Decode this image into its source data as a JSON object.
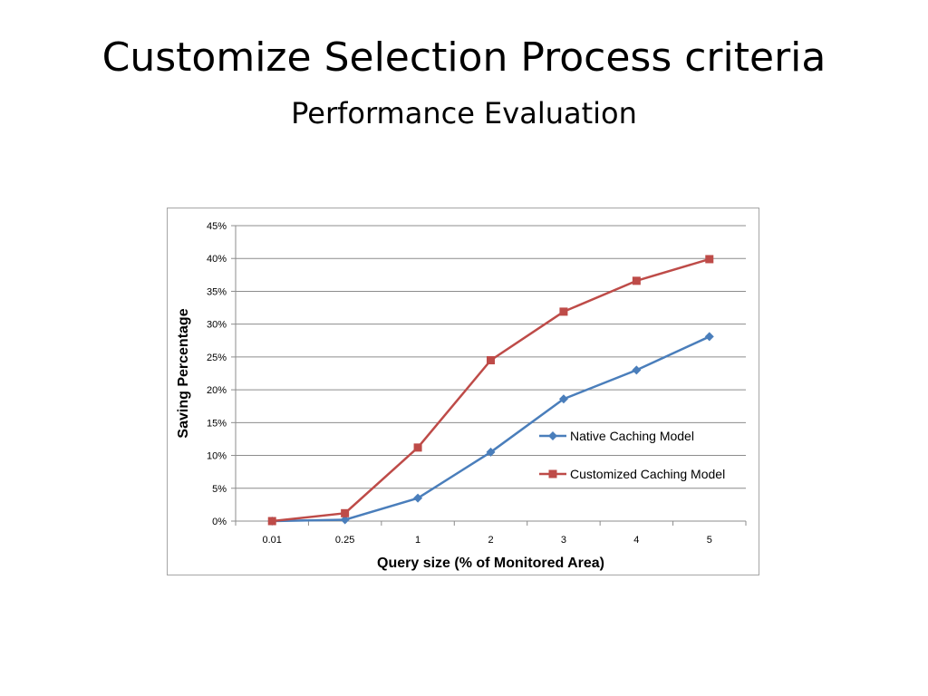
{
  "slide": {
    "title": "Customize Selection Process criteria",
    "subtitle": "Performance Evaluation"
  },
  "chart_data": {
    "type": "line",
    "categories": [
      "0.01",
      "0.25",
      "1",
      "2",
      "3",
      "4",
      "5"
    ],
    "xlabel": "Query size (% of Monitored Area)",
    "ylabel": "Saving Percentage",
    "ylim": [
      0,
      0.45
    ],
    "yticks": [
      "0%",
      "5%",
      "10%",
      "15%",
      "20%",
      "25%",
      "30%",
      "35%",
      "40%",
      "45%"
    ],
    "ytick_values": [
      0,
      0.05,
      0.1,
      0.15,
      0.2,
      0.25,
      0.3,
      0.35,
      0.4,
      0.45
    ],
    "grid": "horizontal",
    "legend_position": "right",
    "series": [
      {
        "name": "Native Caching Model",
        "values": [
          0.0,
          0.002,
          0.035,
          0.105,
          0.186,
          0.23,
          0.281
        ],
        "color": "#4a7ebb",
        "marker": "diamond"
      },
      {
        "name": "Customized Caching Model",
        "values": [
          0.0,
          0.012,
          0.112,
          0.245,
          0.319,
          0.366,
          0.399
        ],
        "color": "#be4b48",
        "marker": "square"
      }
    ]
  }
}
